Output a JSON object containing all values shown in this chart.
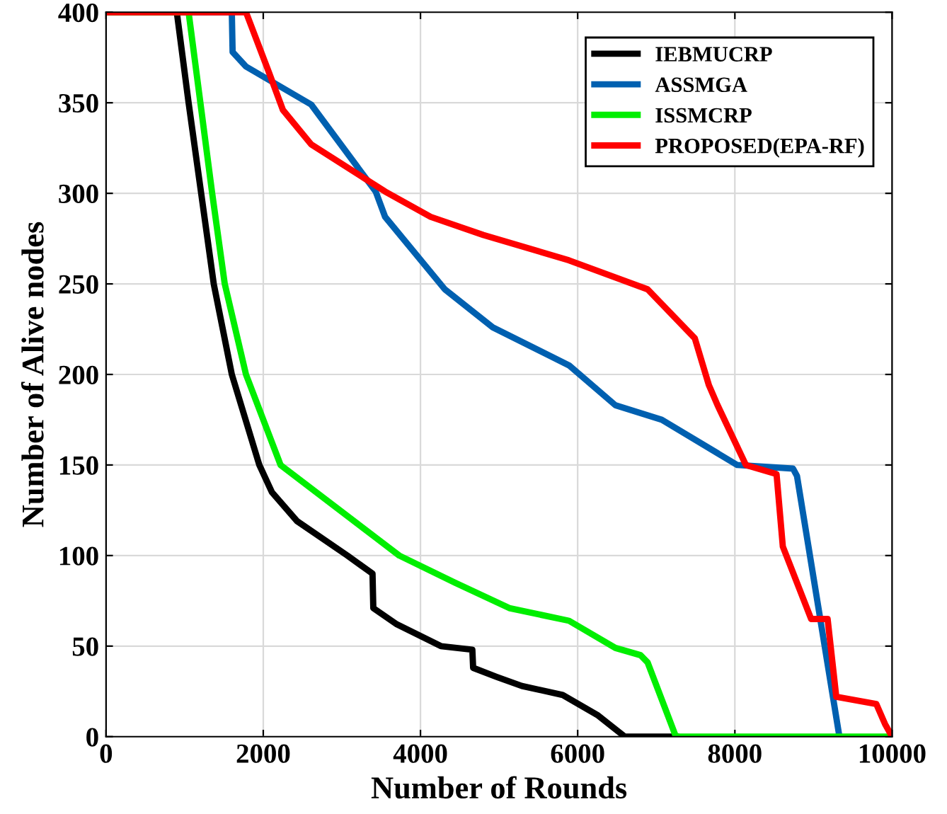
{
  "chart_data": {
    "type": "line",
    "xlabel": "Number of Rounds",
    "ylabel": "Number of Alive nodes",
    "xlim": [
      0,
      10000
    ],
    "ylim": [
      0,
      400
    ],
    "xticks": [
      0,
      2000,
      4000,
      6000,
      8000,
      10000
    ],
    "yticks": [
      0,
      50,
      100,
      150,
      200,
      250,
      300,
      350,
      400
    ],
    "grid": true,
    "legend": "top right",
    "line_style": "solid",
    "series": [
      {
        "name": "IEBMUCRP",
        "color": "#000000",
        "x": [
          0,
          900,
          1050,
          1210,
          1370,
          1600,
          1950,
          2110,
          2430,
          3070,
          3390,
          3400,
          3700,
          4260,
          4660,
          4670,
          4970,
          5290,
          5810,
          6250,
          6600,
          7250
        ],
        "values": [
          400,
          400,
          350,
          300,
          250,
          200,
          150,
          135,
          119,
          100,
          90,
          71,
          62,
          50,
          48,
          38,
          33,
          28,
          23,
          12,
          0,
          0
        ]
      },
      {
        "name": "ASSMGA",
        "color": "#0060b0",
        "x": [
          0,
          1600,
          1610,
          1780,
          2610,
          3430,
          3550,
          4310,
          4920,
          5890,
          6480,
          7070,
          8030,
          8740,
          8790,
          9330
        ],
        "values": [
          400,
          400,
          378,
          370,
          349,
          301,
          287,
          247,
          226,
          205,
          183,
          175,
          150,
          148,
          144,
          0
        ]
      },
      {
        "name": "ISSMCRP",
        "color": "#00ee00",
        "x": [
          0,
          1050,
          1200,
          1350,
          1510,
          1780,
          2220,
          3730,
          4440,
          5130,
          5890,
          6480,
          6800,
          6890,
          7250,
          10000
        ],
        "values": [
          400,
          400,
          350,
          300,
          250,
          200,
          150,
          100,
          85,
          71,
          64,
          49,
          45,
          41,
          0,
          0
        ]
      },
      {
        "name": "PROPOSED(EPA-RF)",
        "color": "#ff0000",
        "x": [
          0,
          1780,
          2070,
          2250,
          2610,
          3550,
          4130,
          4800,
          5890,
          6890,
          7490,
          7670,
          7780,
          8140,
          8530,
          8610,
          8970,
          9180,
          9290,
          9800,
          9910,
          10000
        ],
        "values": [
          400,
          400,
          367,
          346,
          327,
          301,
          287,
          277,
          263,
          247,
          220,
          194,
          183,
          150,
          145,
          105,
          65,
          65,
          22,
          18,
          7,
          0
        ]
      }
    ]
  }
}
